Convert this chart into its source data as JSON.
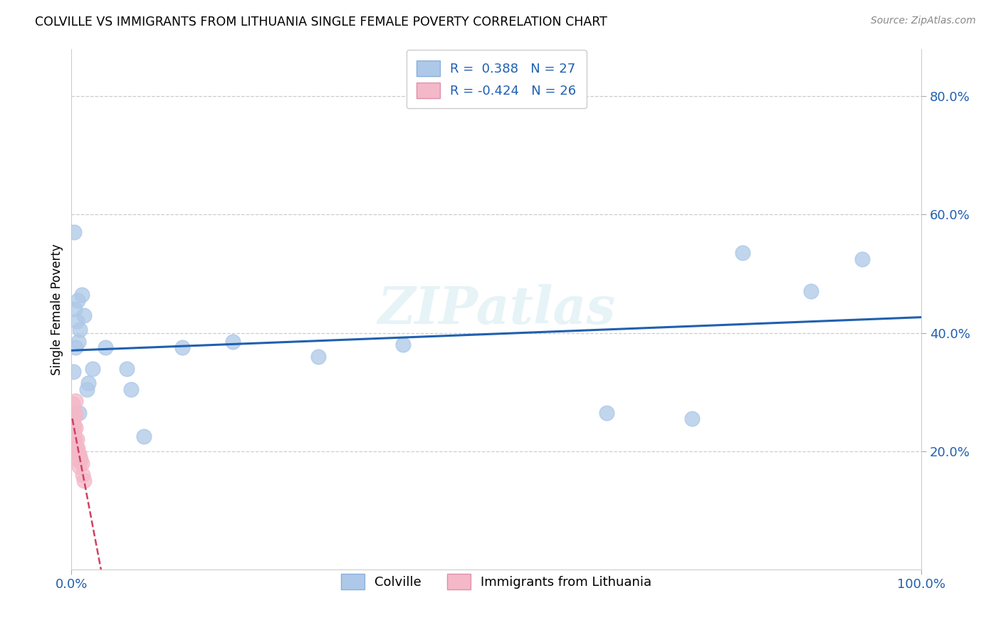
{
  "title": "COLVILLE VS IMMIGRANTS FROM LITHUANIA SINGLE FEMALE POVERTY CORRELATION CHART",
  "source": "Source: ZipAtlas.com",
  "ylabel": "Single Female Poverty",
  "legend_bottom": [
    "Colville",
    "Immigrants from Lithuania"
  ],
  "colville_R": 0.388,
  "colville_N": 27,
  "lithuania_R": -0.424,
  "lithuania_N": 26,
  "colville_color": "#adc8e8",
  "colville_line_color": "#2060b0",
  "lithuania_color": "#f4b8c8",
  "lithuania_line_color": "#d04060",
  "watermark": "ZIPatlas",
  "colville_x": [
    0.002,
    0.003,
    0.004,
    0.005,
    0.006,
    0.007,
    0.008,
    0.009,
    0.01,
    0.012,
    0.015,
    0.018,
    0.02,
    0.025,
    0.04,
    0.065,
    0.07,
    0.085,
    0.13,
    0.19,
    0.29,
    0.39,
    0.63,
    0.73,
    0.79,
    0.87,
    0.93
  ],
  "colville_y": [
    0.335,
    0.57,
    0.44,
    0.375,
    0.42,
    0.455,
    0.385,
    0.265,
    0.405,
    0.465,
    0.43,
    0.305,
    0.315,
    0.34,
    0.375,
    0.34,
    0.305,
    0.225,
    0.375,
    0.385,
    0.36,
    0.38,
    0.265,
    0.255,
    0.535,
    0.47,
    0.525
  ],
  "lithuania_x": [
    0.001,
    0.001,
    0.002,
    0.002,
    0.002,
    0.003,
    0.003,
    0.003,
    0.004,
    0.004,
    0.004,
    0.005,
    0.005,
    0.005,
    0.006,
    0.006,
    0.007,
    0.007,
    0.008,
    0.009,
    0.009,
    0.01,
    0.011,
    0.012,
    0.013,
    0.015
  ],
  "lithuania_y": [
    0.245,
    0.28,
    0.225,
    0.235,
    0.255,
    0.215,
    0.225,
    0.245,
    0.205,
    0.22,
    0.26,
    0.285,
    0.265,
    0.24,
    0.205,
    0.22,
    0.195,
    0.205,
    0.185,
    0.195,
    0.175,
    0.19,
    0.185,
    0.18,
    0.16,
    0.15
  ],
  "xlim": [
    0.0,
    1.0
  ],
  "ylim": [
    0.0,
    0.88
  ],
  "yticks": [
    0.2,
    0.4,
    0.6,
    0.8
  ],
  "ytick_labels": [
    "20.0%",
    "40.0%",
    "60.0%",
    "80.0%"
  ],
  "xtick_labels": [
    "0.0%",
    "100.0%"
  ],
  "background_color": "#ffffff",
  "grid_color": "#cccccc",
  "grid_linestyle": "--"
}
